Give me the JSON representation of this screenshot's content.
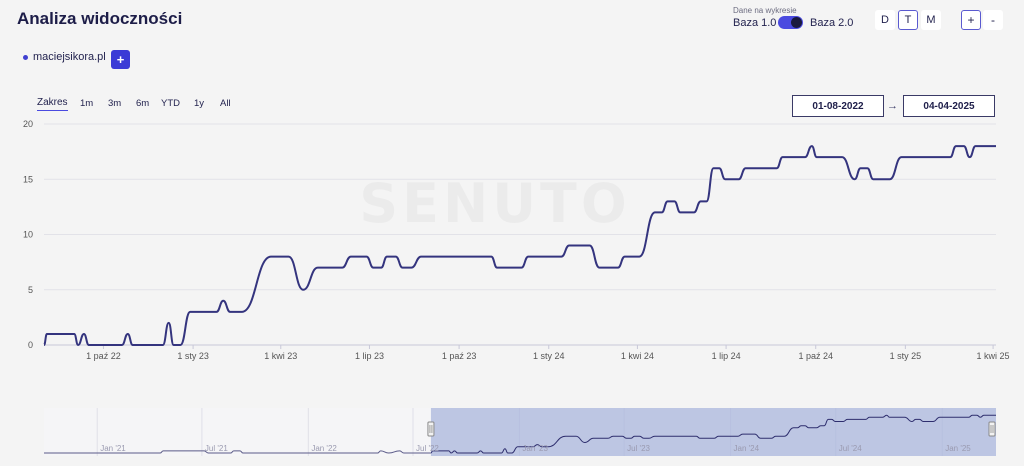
{
  "header": {
    "title": "Analiza widoczności"
  },
  "data_source": {
    "label": "Dane na wykresie",
    "option_left": "Baza 1.0",
    "option_right": "Baza 2.0",
    "selected": "Baza 2.0"
  },
  "granularity": {
    "options": [
      "D",
      "T",
      "M"
    ],
    "active": "T"
  },
  "zoom": {
    "plus": "+",
    "minus": "-"
  },
  "domains": [
    {
      "name": "maciejsikora.pl"
    }
  ],
  "add_domain_label": "+",
  "range_selector": {
    "label": "Zakres",
    "buttons": [
      "1m",
      "3m",
      "6m",
      "YTD",
      "1y",
      "All"
    ]
  },
  "date_range": {
    "from": "01-08-2022",
    "to": "04-04-2025",
    "arrow": "→"
  },
  "watermark": "SENUTO",
  "chart_data": {
    "type": "line",
    "series_color": "#34347e",
    "y_ticks": [
      0,
      5,
      10,
      15,
      20
    ],
    "ylim": [
      0,
      20
    ],
    "x_ticks": [
      "1 paź 22",
      "1 sty 23",
      "1 kwi 23",
      "1 lip 23",
      "1 paź 23",
      "1 sty 24",
      "1 kwi 24",
      "1 lip 24",
      "1 paź 24",
      "1 sty 25",
      "1 kwi 25"
    ],
    "x_tick_dates": [
      "2022-10-01",
      "2023-01-01",
      "2023-04-01",
      "2023-07-01",
      "2023-10-01",
      "2024-01-01",
      "2024-04-01",
      "2024-07-01",
      "2024-10-01",
      "2025-01-01",
      "2025-04-01"
    ],
    "xlim": [
      "2022-08-01",
      "2025-04-04"
    ],
    "grid": true,
    "series": [
      {
        "points": [
          [
            "2022-08-01",
            0
          ],
          [
            "2022-08-04",
            1
          ],
          [
            "2022-09-01",
            1
          ],
          [
            "2022-09-05",
            0
          ],
          [
            "2022-09-11",
            1
          ],
          [
            "2022-09-16",
            0
          ],
          [
            "2022-10-20",
            0
          ],
          [
            "2022-10-26",
            1
          ],
          [
            "2022-10-31",
            0
          ],
          [
            "2022-12-01",
            0
          ],
          [
            "2022-12-07",
            2
          ],
          [
            "2022-12-12",
            0
          ],
          [
            "2022-12-19",
            0
          ],
          [
            "2022-12-29",
            3
          ],
          [
            "2023-01-25",
            3
          ],
          [
            "2023-02-01",
            4
          ],
          [
            "2023-02-08",
            3
          ],
          [
            "2023-02-20",
            3
          ],
          [
            "2023-03-22",
            8
          ],
          [
            "2023-04-09",
            8
          ],
          [
            "2023-04-24",
            5
          ],
          [
            "2023-05-09",
            7
          ],
          [
            "2023-06-03",
            7
          ],
          [
            "2023-06-12",
            8
          ],
          [
            "2023-06-28",
            8
          ],
          [
            "2023-07-05",
            7
          ],
          [
            "2023-07-13",
            7
          ],
          [
            "2023-07-19",
            8
          ],
          [
            "2023-07-28",
            8
          ],
          [
            "2023-08-04",
            7
          ],
          [
            "2023-08-13",
            7
          ],
          [
            "2023-08-23",
            8
          ],
          [
            "2023-11-03",
            8
          ],
          [
            "2023-11-09",
            7
          ],
          [
            "2023-12-04",
            7
          ],
          [
            "2023-12-11",
            8
          ],
          [
            "2024-01-14",
            8
          ],
          [
            "2024-01-22",
            9
          ],
          [
            "2024-02-12",
            9
          ],
          [
            "2024-02-22",
            7
          ],
          [
            "2024-03-12",
            7
          ],
          [
            "2024-03-19",
            8
          ],
          [
            "2024-04-03",
            8
          ],
          [
            "2024-04-19",
            12
          ],
          [
            "2024-04-26",
            12
          ],
          [
            "2024-05-02",
            13
          ],
          [
            "2024-05-09",
            13
          ],
          [
            "2024-05-15",
            12
          ],
          [
            "2024-05-29",
            12
          ],
          [
            "2024-06-05",
            13
          ],
          [
            "2024-06-11",
            13
          ],
          [
            "2024-06-18",
            16
          ],
          [
            "2024-06-24",
            16
          ],
          [
            "2024-06-30",
            15
          ],
          [
            "2024-07-14",
            15
          ],
          [
            "2024-07-21",
            16
          ],
          [
            "2024-08-22",
            16
          ],
          [
            "2024-08-28",
            17
          ],
          [
            "2024-09-20",
            17
          ],
          [
            "2024-09-27",
            18
          ],
          [
            "2024-10-02",
            17
          ],
          [
            "2024-10-28",
            17
          ],
          [
            "2024-11-10",
            15
          ],
          [
            "2024-11-16",
            16
          ],
          [
            "2024-11-23",
            16
          ],
          [
            "2024-11-29",
            15
          ],
          [
            "2024-12-16",
            15
          ],
          [
            "2024-12-28",
            17
          ],
          [
            "2025-02-16",
            17
          ],
          [
            "2025-02-22",
            18
          ],
          [
            "2025-03-02",
            18
          ],
          [
            "2025-03-08",
            17
          ],
          [
            "2025-03-14",
            18
          ],
          [
            "2025-04-04",
            18
          ]
        ]
      }
    ],
    "navigator": {
      "x_ticks": [
        "Jan '21",
        "Jul '21",
        "Jan '22",
        "Jul '22",
        "Jan '23",
        "Jul '23",
        "Jan '24",
        "Jul '24",
        "Jan '25"
      ],
      "x_tick_dates": [
        "2021-01-01",
        "2021-07-01",
        "2022-01-01",
        "2022-07-01",
        "2023-01-01",
        "2023-07-01",
        "2024-01-01",
        "2024-07-01",
        "2025-01-01"
      ],
      "xlim": [
        "2020-10-01",
        "2025-04-04"
      ],
      "selected_range": [
        "2022-08-01",
        "2025-04-04"
      ],
      "series": [
        {
          "points": [
            [
              "2020-10-01",
              0
            ],
            [
              "2021-04-20",
              0
            ],
            [
              "2021-04-25",
              1
            ],
            [
              "2021-07-05",
              1
            ],
            [
              "2021-07-12",
              0
            ],
            [
              "2021-08-20",
              0
            ],
            [
              "2021-08-25",
              1
            ],
            [
              "2021-09-05",
              1
            ],
            [
              "2021-09-10",
              0
            ],
            [
              "2022-05-01",
              0
            ],
            [
              "2022-05-06",
              1
            ],
            [
              "2022-05-20",
              0
            ],
            [
              "2022-06-08",
              1
            ],
            [
              "2022-06-15",
              0
            ],
            [
              "2022-08-01",
              0
            ]
          ]
        }
      ]
    }
  }
}
